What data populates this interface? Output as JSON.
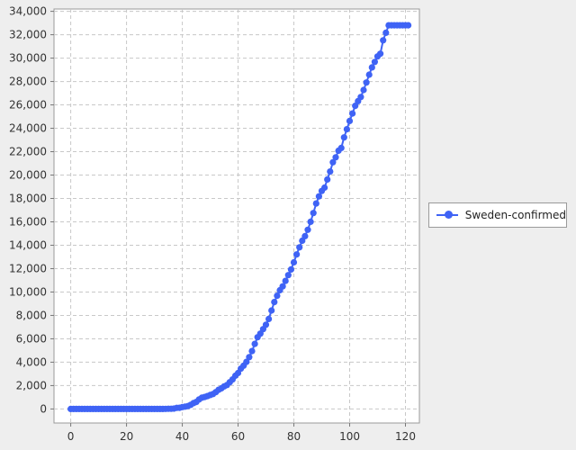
{
  "chart_data": {
    "type": "line",
    "title": "",
    "xlabel": "",
    "ylabel": "",
    "xlim": [
      -6,
      125
    ],
    "ylim": [
      -1200,
      34200
    ],
    "x_ticks": [
      0,
      20,
      40,
      60,
      80,
      100,
      120
    ],
    "y_ticks": [
      0,
      2000,
      4000,
      6000,
      8000,
      10000,
      12000,
      14000,
      16000,
      18000,
      20000,
      22000,
      24000,
      26000,
      28000,
      30000,
      32000,
      34000
    ],
    "grid": true,
    "legend_position": "right",
    "series": [
      {
        "name": "Sweden-confirmed",
        "color": "#3f63f5",
        "marker": "circle",
        "x": [
          0,
          1,
          2,
          3,
          4,
          5,
          6,
          7,
          8,
          9,
          10,
          11,
          12,
          13,
          14,
          15,
          16,
          17,
          18,
          19,
          20,
          21,
          22,
          23,
          24,
          25,
          26,
          27,
          28,
          29,
          30,
          31,
          32,
          33,
          34,
          35,
          36,
          37,
          38,
          39,
          40,
          41,
          42,
          43,
          44,
          45,
          46,
          47,
          48,
          49,
          50,
          51,
          52,
          53,
          54,
          55,
          56,
          57,
          58,
          59,
          60,
          61,
          62,
          63,
          64,
          65,
          66,
          67,
          68,
          69,
          70,
          71,
          72,
          73,
          74,
          75,
          76,
          77,
          78,
          79,
          80,
          81,
          82,
          83,
          84,
          85,
          86,
          87,
          88,
          89,
          90,
          91,
          92,
          93,
          94,
          95,
          96,
          97,
          98,
          99,
          100,
          101,
          102,
          103,
          104,
          105,
          106,
          107,
          108,
          109,
          110,
          111,
          112,
          113,
          114,
          115,
          116,
          117,
          118,
          119,
          120,
          121
        ],
        "y": [
          0,
          0,
          0,
          0,
          0,
          0,
          0,
          0,
          1,
          1,
          1,
          1,
          1,
          1,
          1,
          1,
          1,
          1,
          1,
          1,
          1,
          1,
          1,
          1,
          1,
          1,
          1,
          1,
          1,
          1,
          1,
          1,
          1,
          2,
          7,
          14,
          15,
          35,
          94,
          101,
          161,
          203,
          248,
          355,
          500,
          599,
          814,
          961,
          1022,
          1103,
          1190,
          1279,
          1439,
          1639,
          1763,
          1934,
          2046,
          2286,
          2526,
          2840,
          3069,
          3447,
          3700,
          4028,
          4435,
          4947,
          5568,
          6131,
          6443,
          6830,
          7206,
          7693,
          8419,
          9141,
          9685,
          10151,
          10483,
          10948,
          11445,
          11927,
          12540,
          13216,
          13822,
          14385,
          14777,
          15322,
          16004,
          16755,
          17567,
          18177,
          18640,
          18926,
          19621,
          20302,
          21092,
          21520,
          22082,
          22317,
          23216,
          23918,
          24623,
          25265,
          25921,
          26322,
          26670,
          27272,
          27909,
          28582,
          29207,
          29677,
          30143,
          30377,
          31523,
          32172,
          32809,
          32809,
          32809,
          32809,
          32809,
          32809,
          32809,
          32809
        ]
      }
    ]
  }
}
